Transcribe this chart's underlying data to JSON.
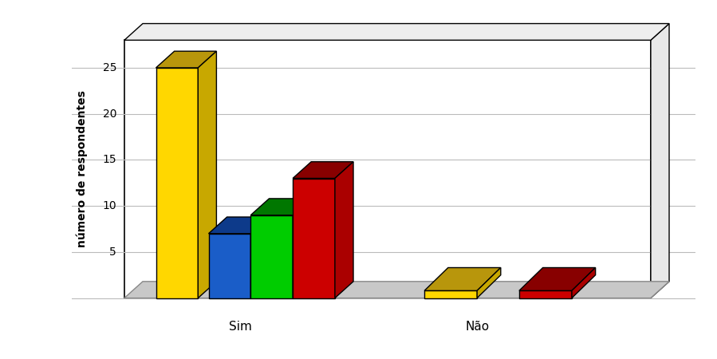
{
  "bars_sim": [
    {
      "front": "#FFD700",
      "top": "#B8960C",
      "side": "#C8A800",
      "value": 25
    },
    {
      "front": "#1A5DC8",
      "top": "#0D3A8A",
      "side": "#1448A0",
      "value": 7
    },
    {
      "front": "#00CC00",
      "top": "#007700",
      "side": "#009900",
      "value": 9
    },
    {
      "front": "#CC0000",
      "top": "#880000",
      "side": "#AA0000",
      "value": 13
    }
  ],
  "bars_nao": [
    {
      "front": "#FFD700",
      "top": "#B8960C",
      "side": "#C8A800",
      "value": 3
    },
    {
      "front": "#CC0000",
      "top": "#880000",
      "side": "#AA0000",
      "value": 3
    }
  ],
  "ymax": 28,
  "yticks": [
    0,
    5,
    10,
    15,
    20,
    25
  ],
  "ylabel": "número de respondentes",
  "floor_color": "#C8C8C8",
  "wall_color": "#FFFFFF",
  "grid_color": "#BBBBBB",
  "floor_edge": "#888888",
  "bar_edge": "#000000"
}
